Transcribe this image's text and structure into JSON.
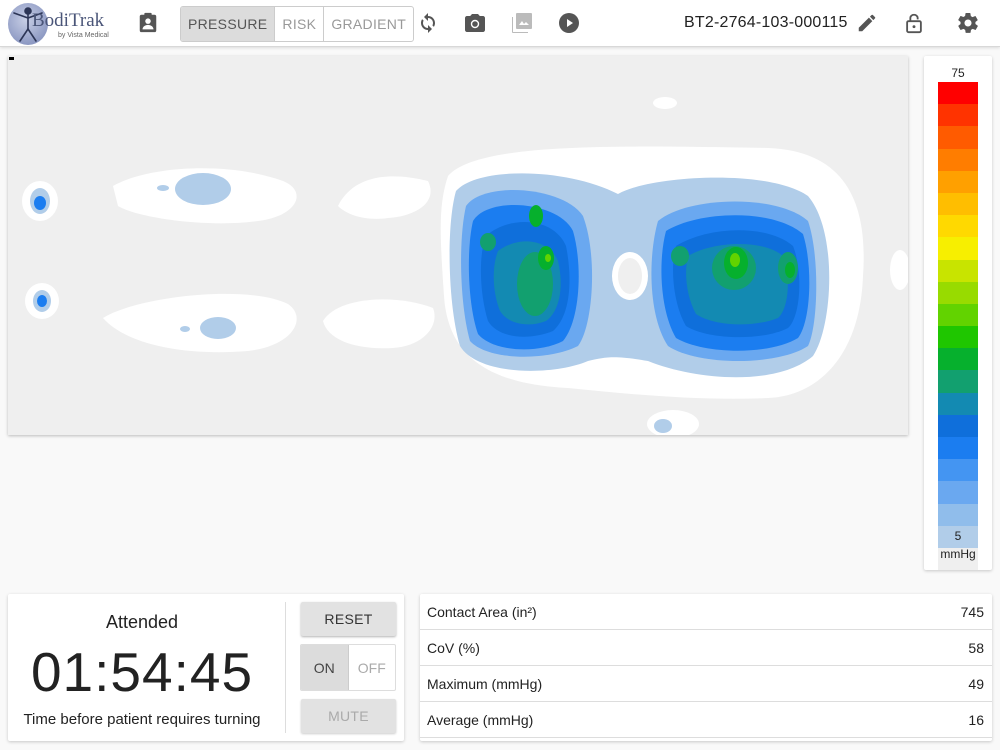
{
  "header": {
    "logo": {
      "name": "BodiTrak",
      "subtitle": "by Vista Medical"
    },
    "tabs": [
      {
        "label": "PRESSURE",
        "active": true
      },
      {
        "label": "RISK",
        "active": false
      },
      {
        "label": "GRADIENT",
        "active": false
      }
    ],
    "device_id": "BT2-2764-103-000115",
    "icons": {
      "patient": "patient-card-icon",
      "refresh": "refresh-icon",
      "camera": "camera-icon",
      "gallery": "gallery-icon",
      "play": "play-icon",
      "edit": "pencil-icon",
      "lock": "unlock-icon",
      "settings": "gear-icon"
    }
  },
  "legend": {
    "max": "75",
    "min": "5",
    "unit": "mmHg",
    "colors": [
      "#ff0000",
      "#ff3300",
      "#ff5b00",
      "#ff7d00",
      "#ffa000",
      "#ffbe00",
      "#ffd900",
      "#f7ef00",
      "#c8e400",
      "#98db00",
      "#62d300",
      "#1fc600",
      "#06b02d",
      "#12a06f",
      "#138ab2",
      "#0f6fdb",
      "#1b7df0",
      "#4495f2",
      "#6aa8f0",
      "#90bdeb",
      "#b1cde9",
      "#efefef"
    ]
  },
  "timer": {
    "status": "Attended",
    "time": "01:54:45",
    "caption": "Time before patient requires turning",
    "reset_label": "RESET",
    "on_label": "ON",
    "off_label": "OFF",
    "alarm_on": true,
    "mute_label": "MUTE"
  },
  "stats": [
    {
      "label": "Contact Area (in²)",
      "value": "745"
    },
    {
      "label": "CoV (%)",
      "value": "58"
    },
    {
      "label": "Maximum (mmHg)",
      "value": "49"
    },
    {
      "label": "Average (mmHg)",
      "value": "16"
    }
  ]
}
